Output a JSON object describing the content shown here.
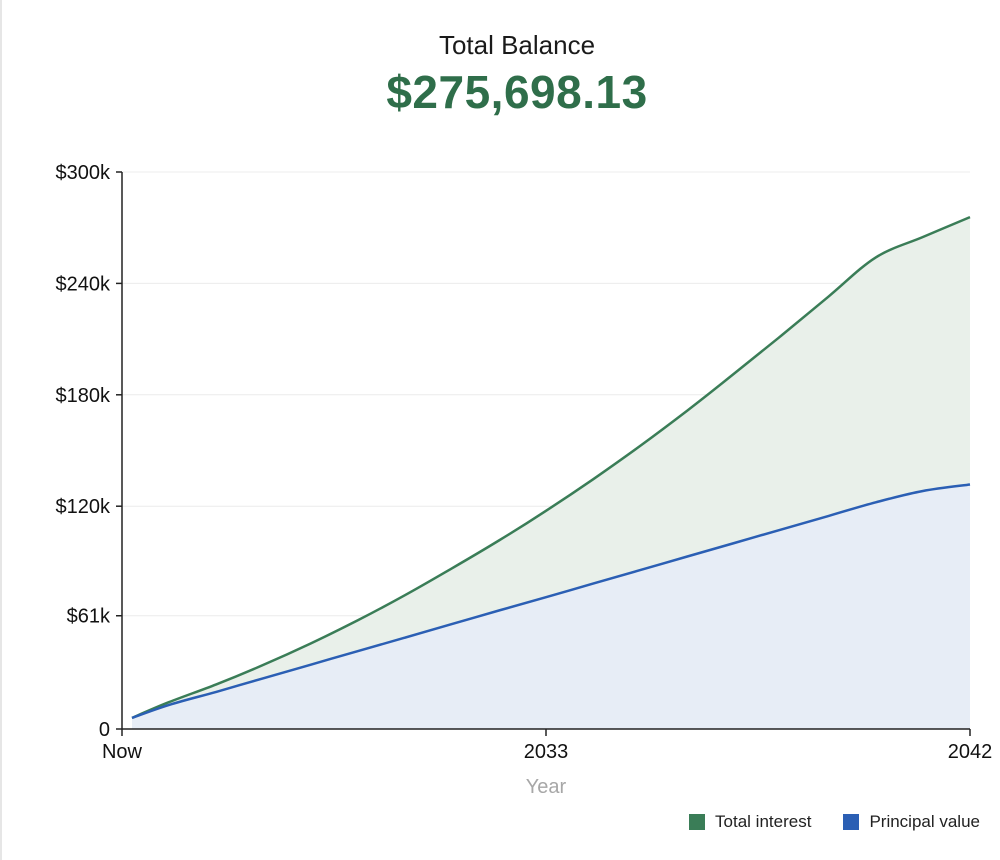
{
  "header": {
    "title": "Total Balance",
    "amount": "$275,698.13"
  },
  "chart_data": {
    "type": "area",
    "x": [
      2024,
      2025,
      2026,
      2027,
      2028,
      2029,
      2030,
      2031,
      2032,
      2033,
      2034,
      2035,
      2036,
      2037,
      2038,
      2039,
      2040,
      2041,
      2042
    ],
    "x_tick_labels": [
      {
        "x": 2024,
        "label": "Now"
      },
      {
        "x": 2033,
        "label": "2033"
      },
      {
        "x": 2042,
        "label": "2042"
      }
    ],
    "xlabel": "Year",
    "ylabel": "",
    "y_ticks": [
      {
        "value": 0,
        "label": "0"
      },
      {
        "value": 61000,
        "label": "$61k"
      },
      {
        "value": 120000,
        "label": "$120k"
      },
      {
        "value": 180000,
        "label": "$180k"
      },
      {
        "value": 240000,
        "label": "$240k"
      },
      {
        "value": 300000,
        "label": "$300k"
      }
    ],
    "ylim": [
      0,
      300000
    ],
    "grid": true,
    "legend_position": "bottom-right",
    "series": [
      {
        "name": "Total interest",
        "color": "#3a7d57",
        "fill": "#e9f0ea",
        "values": [
          6000,
          14500,
          24000,
          34500,
          46000,
          58500,
          72000,
          86500,
          101500,
          117500,
          134500,
          152500,
          171500,
          191500,
          212000,
          233000,
          254000,
          265000,
          275698
        ]
      },
      {
        "name": "Principal value",
        "color": "#2b5fb4",
        "fill": "#e7edf6",
        "values": [
          6000,
          13000,
          20000,
          27300,
          34600,
          41900,
          49200,
          56500,
          63800,
          71000,
          78300,
          85600,
          92900,
          100200,
          107500,
          114800,
          122100,
          128200,
          131700
        ]
      }
    ]
  }
}
